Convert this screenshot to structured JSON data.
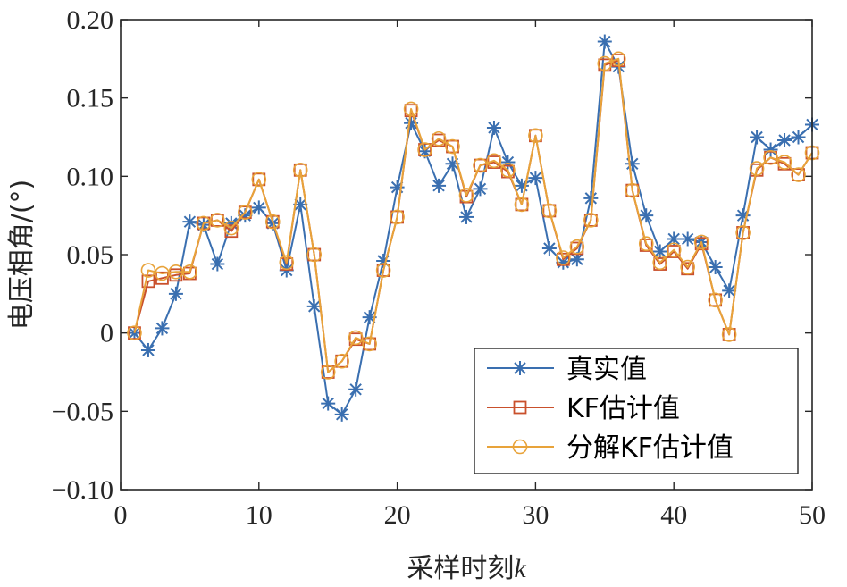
{
  "chart_data": {
    "type": "line",
    "xlabel": "采样时刻",
    "xlabel_var": "k",
    "ylabel": "电压相角/(°)",
    "xlim": [
      0,
      50
    ],
    "ylim": [
      -0.1,
      0.2
    ],
    "xticks": [
      "0",
      "10",
      "20",
      "30",
      "40",
      "50"
    ],
    "yticks": [
      "-0.10",
      "-0.05",
      "0",
      "0.05",
      "0.10",
      "0.15",
      "0.20"
    ],
    "legend_position": "bottom-right",
    "x": [
      1,
      2,
      3,
      4,
      5,
      6,
      7,
      8,
      9,
      10,
      11,
      12,
      13,
      14,
      15,
      16,
      17,
      18,
      19,
      20,
      21,
      22,
      23,
      24,
      25,
      26,
      27,
      28,
      29,
      30,
      31,
      32,
      33,
      34,
      35,
      36,
      37,
      38,
      39,
      40,
      41,
      42,
      43,
      44,
      45,
      46,
      47,
      48,
      49,
      50
    ],
    "series": [
      {
        "name": "真实值",
        "color": "#3a6fb0",
        "marker": "star",
        "values": [
          0.0,
          -0.011,
          0.003,
          0.025,
          0.071,
          0.069,
          0.044,
          0.07,
          0.075,
          0.08,
          0.07,
          0.04,
          0.082,
          0.017,
          -0.045,
          -0.052,
          -0.036,
          0.01,
          0.046,
          0.093,
          0.134,
          0.116,
          0.094,
          0.108,
          0.074,
          0.092,
          0.131,
          0.109,
          0.094,
          0.099,
          0.054,
          0.045,
          0.047,
          0.086,
          0.186,
          0.17,
          0.108,
          0.075,
          0.052,
          0.06,
          0.06,
          0.058,
          0.042,
          0.027,
          0.075,
          0.125,
          0.117,
          0.123,
          0.125,
          0.133
        ]
      },
      {
        "name": "KF估计值",
        "color": "#c9502c",
        "marker": "square",
        "values": [
          0.0,
          0.033,
          0.035,
          0.037,
          0.038,
          0.07,
          0.072,
          0.065,
          0.077,
          0.098,
          0.071,
          0.044,
          0.104,
          0.05,
          -0.025,
          -0.018,
          -0.004,
          -0.007,
          0.04,
          0.074,
          0.142,
          0.117,
          0.123,
          0.119,
          0.087,
          0.107,
          0.109,
          0.103,
          0.082,
          0.126,
          0.078,
          0.047,
          0.054,
          0.072,
          0.171,
          0.174,
          0.091,
          0.056,
          0.044,
          0.052,
          0.041,
          0.057,
          0.021,
          -0.001,
          0.064,
          0.104,
          0.112,
          0.108,
          0.101,
          0.115
        ]
      },
      {
        "name": "分解KF估计值",
        "color": "#e8a33a",
        "marker": "circle",
        "values": [
          0.0,
          0.04,
          0.038,
          0.039,
          0.039,
          0.07,
          0.072,
          0.067,
          0.077,
          0.098,
          0.071,
          0.045,
          0.104,
          0.05,
          -0.025,
          -0.018,
          -0.003,
          -0.007,
          0.04,
          0.074,
          0.143,
          0.117,
          0.124,
          0.119,
          0.088,
          0.107,
          0.11,
          0.104,
          0.082,
          0.126,
          0.078,
          0.048,
          0.055,
          0.072,
          0.172,
          0.175,
          0.091,
          0.057,
          0.045,
          0.053,
          0.042,
          0.058,
          0.021,
          -0.001,
          0.064,
          0.105,
          0.112,
          0.109,
          0.101,
          0.115
        ]
      }
    ]
  }
}
